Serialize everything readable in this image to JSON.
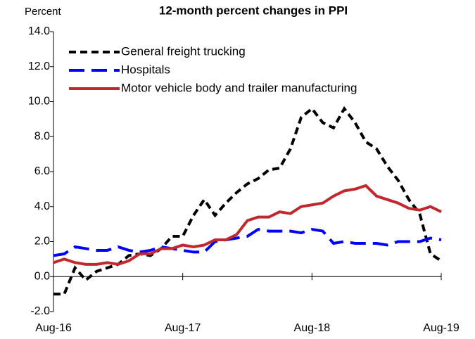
{
  "chart_data": {
    "type": "line",
    "title": "12-month percent changes in PPI",
    "y_label": "Percent",
    "categories": [
      "Aug-16",
      null,
      null,
      null,
      null,
      null,
      null,
      null,
      null,
      null,
      null,
      null,
      "Aug-17",
      null,
      null,
      null,
      null,
      null,
      null,
      null,
      null,
      null,
      null,
      null,
      "Aug-18",
      null,
      null,
      null,
      null,
      null,
      null,
      null,
      null,
      null,
      null,
      null,
      "Aug-19"
    ],
    "series": [
      {
        "name": "General freight trucking",
        "color": "#000000",
        "dash": "10,6",
        "values": [
          -1.0,
          -1.0,
          0.5,
          -0.2,
          0.3,
          0.5,
          0.7,
          1.2,
          1.3,
          1.2,
          1.6,
          2.3,
          2.3,
          3.5,
          4.4,
          3.5,
          4.2,
          4.8,
          5.3,
          5.6,
          6.1,
          6.2,
          7.3,
          9.1,
          9.6,
          8.8,
          8.5,
          9.6,
          8.8,
          7.7,
          7.3,
          6.3,
          5.5,
          4.4,
          3.6,
          1.3,
          0.9
        ]
      },
      {
        "name": "Hospitals",
        "color": "#0000ff",
        "dash": "22,10",
        "values": [
          1.2,
          1.3,
          1.7,
          1.6,
          1.5,
          1.5,
          1.7,
          1.5,
          1.4,
          1.5,
          1.7,
          1.6,
          1.5,
          1.4,
          1.4,
          2.0,
          2.1,
          2.2,
          2.3,
          2.7,
          2.6,
          2.6,
          2.6,
          2.5,
          2.7,
          2.6,
          1.9,
          2.0,
          1.9,
          1.9,
          1.9,
          1.8,
          2.0,
          2.0,
          2.0,
          2.2,
          2.1
        ]
      },
      {
        "name": "Motor vehicle body and trailer manufacturing",
        "color": "#c0282d",
        "dash": "none",
        "values": [
          0.8,
          1.0,
          0.8,
          0.7,
          0.7,
          0.8,
          0.7,
          0.9,
          1.3,
          1.3,
          1.6,
          1.6,
          1.8,
          1.7,
          1.8,
          2.1,
          2.1,
          2.4,
          3.2,
          3.4,
          3.4,
          3.7,
          3.6,
          4.0,
          4.1,
          4.2,
          4.6,
          4.9,
          5.0,
          5.2,
          4.6,
          4.4,
          4.2,
          3.9,
          3.8,
          4.0,
          3.7
        ]
      }
    ],
    "ylim": [
      -2,
      14
    ],
    "yticks": [
      {
        "value": -2,
        "label": "-2.0"
      },
      {
        "value": 0,
        "label": "0.0"
      },
      {
        "value": 2,
        "label": "2.0"
      },
      {
        "value": 4,
        "label": "4.0"
      },
      {
        "value": 6,
        "label": "6.0"
      },
      {
        "value": 8,
        "label": "8.0"
      },
      {
        "value": 10,
        "label": "10.0"
      },
      {
        "value": 12,
        "label": "12.0"
      },
      {
        "value": 14,
        "label": "14.0"
      }
    ],
    "legend": "upper left"
  }
}
